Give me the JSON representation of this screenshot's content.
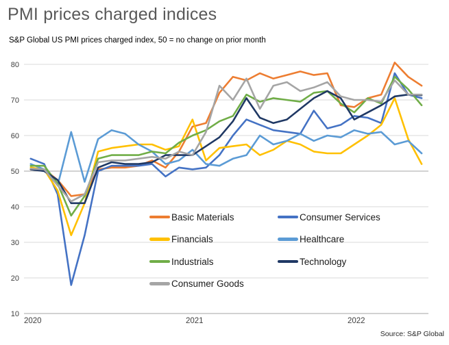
{
  "report": {
    "title": "PMI prices charged indices",
    "subtitle": "S&P Global US PMI prices charged index, 50 = no change on prior month",
    "source": "Source: S&P Global"
  },
  "chart_data": {
    "type": "line",
    "title": "PMI prices charged indices",
    "x": [
      "2020-01",
      "2020-02",
      "2020-03",
      "2020-04",
      "2020-05",
      "2020-06",
      "2020-07",
      "2020-08",
      "2020-09",
      "2020-10",
      "2020-11",
      "2020-12",
      "2021-01",
      "2021-02",
      "2021-03",
      "2021-04",
      "2021-05",
      "2021-06",
      "2021-07",
      "2021-08",
      "2021-09",
      "2021-10",
      "2021-11",
      "2021-12",
      "2022-01",
      "2022-02",
      "2022-03",
      "2022-04",
      "2022-05",
      "2022-06"
    ],
    "x_axis": {
      "tick_labels": [
        {
          "label": "2020",
          "index": 0
        },
        {
          "label": "2021",
          "index": 12
        },
        {
          "label": "2022",
          "index": 24
        }
      ]
    },
    "y_axis": {
      "min": 10,
      "max": 80,
      "step": 10,
      "ticks": [
        80,
        70,
        60,
        50,
        40,
        30,
        20,
        10
      ],
      "reference_line": 50
    },
    "grid": {
      "color": "#d9d9d9",
      "reference_color": "#a6a6a6",
      "axis_color": "#a6a6a6"
    },
    "series": [
      {
        "name": "Basic Materials",
        "color": "#ED7D31",
        "values": [
          50.5,
          50.5,
          47.5,
          43,
          43.5,
          50.5,
          51,
          51,
          51.5,
          53,
          51,
          55.5,
          62.5,
          63.5,
          72,
          76.5,
          75.5,
          77.5,
          76,
          77,
          78,
          77,
          77.5,
          68.5,
          68,
          70.5,
          71.5,
          80.5,
          76.5,
          74
        ]
      },
      {
        "name": "Consumer Services",
        "color": "#4472C4",
        "values": [
          53.5,
          52,
          43.5,
          18,
          32,
          50,
          51.5,
          51.5,
          51.5,
          52,
          48.5,
          51,
          50.5,
          51,
          54.5,
          60,
          64.5,
          63,
          61.5,
          61,
          60.5,
          67,
          62,
          63,
          65.5,
          65,
          63.5,
          77.5,
          71.5,
          70.5
        ]
      },
      {
        "name": "Financials",
        "color": "#FFC000",
        "values": [
          51,
          50.5,
          44.5,
          32,
          41,
          55.5,
          56.5,
          57,
          57.5,
          57.5,
          56,
          57,
          64.5,
          53,
          56.5,
          57,
          57.5,
          54.5,
          56,
          58.5,
          57.5,
          55.5,
          55,
          55,
          57.5,
          60,
          63,
          70.5,
          59,
          52
        ]
      },
      {
        "name": "Healthcare",
        "color": "#5B9BD5",
        "values": [
          52,
          50.5,
          46,
          61,
          47,
          59,
          61.5,
          60.5,
          57.5,
          55.5,
          52,
          53,
          56,
          52,
          51.5,
          53.5,
          54.5,
          60,
          57.5,
          58.5,
          60.5,
          58.5,
          60,
          59.5,
          61.5,
          60.5,
          61,
          57.5,
          58.5,
          55
        ]
      },
      {
        "name": "Industrials",
        "color": "#70AD47",
        "values": [
          51.5,
          51.5,
          46.5,
          37.5,
          43,
          53.5,
          54.5,
          54.5,
          54.5,
          55.5,
          55,
          58,
          60,
          61.5,
          64,
          65.5,
          71.5,
          69.5,
          70.5,
          70,
          69.5,
          72,
          72.5,
          69,
          66.5,
          70.5,
          69,
          76.5,
          73,
          68.5
        ]
      },
      {
        "name": "Technology",
        "color": "#1F3864",
        "values": [
          50.5,
          50,
          47.5,
          41,
          41,
          51,
          52.5,
          52,
          52,
          52.5,
          54.5,
          54.5,
          54.5,
          57,
          59.5,
          64,
          70.5,
          65,
          63.5,
          64.5,
          67.5,
          70.5,
          72.5,
          70.5,
          64.5,
          66.5,
          68.5,
          71,
          71.5,
          71.3
        ]
      },
      {
        "name": "Consumer Goods",
        "color": "#A5A5A5",
        "values": [
          50.7,
          50.5,
          46,
          41.5,
          43.5,
          52.5,
          53,
          53,
          53.5,
          54,
          53.5,
          55.5,
          54.5,
          61,
          74,
          70,
          76,
          67.5,
          74,
          75,
          72.5,
          73.5,
          75,
          71,
          70,
          70,
          69.5,
          75.5,
          71.5,
          71.5
        ]
      }
    ],
    "legend": {
      "position": "inside-bottom-center",
      "column1_series": [
        0,
        2,
        4,
        6
      ],
      "column2_series": [
        1,
        3,
        5
      ]
    }
  }
}
